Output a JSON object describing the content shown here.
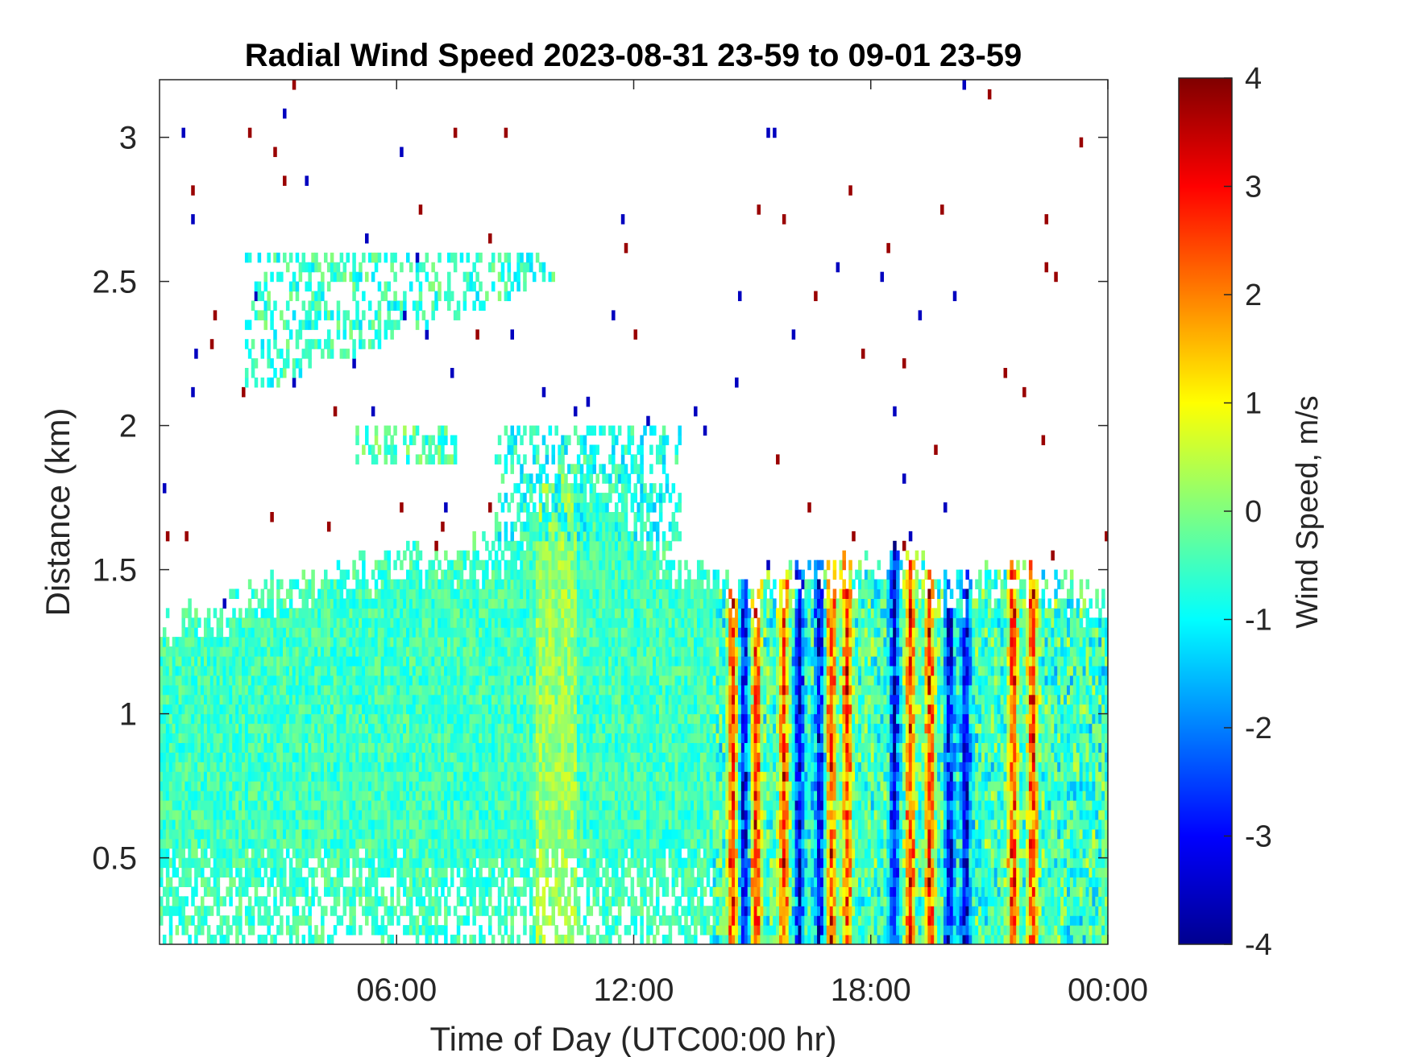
{
  "chart_data": {
    "type": "heatmap",
    "title": "Radial Wind Speed 2023-08-31 23-59 to 09-01 23-59",
    "xlabel": "Time of Day (UTC00:00 hr)",
    "ylabel": "Distance (km)",
    "x_unit": "hour of day (UTC)",
    "xlim": [
      0,
      24
    ],
    "ylim": [
      0.2,
      3.2
    ],
    "x_ticks": [
      {
        "value": 6,
        "label": "06:00"
      },
      {
        "value": 12,
        "label": "12:00"
      },
      {
        "value": 18,
        "label": "18:00"
      },
      {
        "value": 24,
        "label": "00:00"
      }
    ],
    "y_ticks": [
      {
        "value": 0.5,
        "label": "0.5"
      },
      {
        "value": 1,
        "label": "1"
      },
      {
        "value": 1.5,
        "label": "1.5"
      },
      {
        "value": 2,
        "label": "2"
      },
      {
        "value": 2.5,
        "label": "2.5"
      },
      {
        "value": 3,
        "label": "3"
      }
    ],
    "colorbar": {
      "label": "Wind Speed, m/s",
      "colormap": "jet",
      "range": [
        -4,
        4
      ],
      "ticks": [
        "4",
        "3",
        "2",
        "1",
        "0",
        "-1",
        "-2",
        "-3",
        "-4"
      ]
    },
    "grid": false,
    "background": "#ffffff",
    "echo_top_km": [
      [
        0,
        1.32
      ],
      [
        1,
        1.36
      ],
      [
        2,
        1.42
      ],
      [
        3,
        1.48
      ],
      [
        4,
        1.5
      ],
      [
        5,
        1.52
      ],
      [
        6,
        1.55
      ],
      [
        7,
        1.56
      ],
      [
        8,
        1.58
      ],
      [
        9,
        1.62
      ],
      [
        10,
        1.85
      ],
      [
        11,
        1.88
      ],
      [
        12,
        1.75
      ],
      [
        13,
        1.55
      ],
      [
        14,
        1.5
      ],
      [
        15,
        1.45
      ],
      [
        16,
        1.5
      ],
      [
        17,
        1.5
      ],
      [
        18,
        1.55
      ],
      [
        19,
        1.55
      ],
      [
        20,
        1.45
      ],
      [
        21,
        1.5
      ],
      [
        22,
        1.52
      ],
      [
        23,
        1.48
      ],
      [
        24,
        1.4
      ]
    ],
    "elevated_layers": [
      {
        "x_start": 2.2,
        "x_end": 10.0,
        "y_bottom": 2.15,
        "y_top": 2.6,
        "typical_speed_ms": -0.6
      },
      {
        "x_start": 8.5,
        "x_end": 13.2,
        "y_bottom": 1.6,
        "y_top": 2.0,
        "typical_speed_ms": -0.8
      },
      {
        "x_start": 5.0,
        "x_end": 7.5,
        "y_bottom": 1.85,
        "y_top": 2.0,
        "typical_speed_ms": -0.4
      }
    ],
    "convective_updraft_bands_hr": [
      14.5,
      15.1,
      15.8,
      17.0,
      17.4,
      19.0,
      19.5,
      21.6,
      22.1
    ],
    "convective_downdraft_bands_hr": [
      14.8,
      16.2,
      16.7,
      18.6,
      20.0,
      20.4
    ],
    "convective_period_hr": [
      14.0,
      24.0
    ],
    "typical_speed_quiet_ms": -0.5,
    "typical_speed_convective_range_ms": [
      -3.5,
      3.8
    ]
  }
}
